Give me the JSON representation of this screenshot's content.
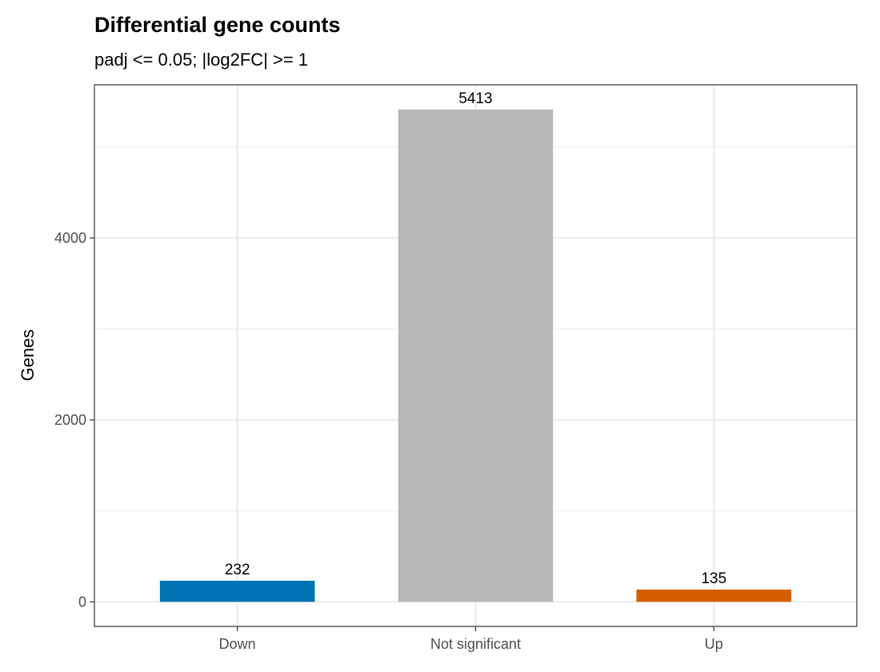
{
  "chart_data": {
    "type": "bar",
    "title": "Differential gene counts",
    "subtitle": "padj <= 0.05; |log2FC| >= 1",
    "xlabel": "",
    "ylabel": "Genes",
    "categories": [
      "Down",
      "Not significant",
      "Up"
    ],
    "values": [
      232,
      5413,
      135
    ],
    "data_labels": [
      "232",
      "5413",
      "135"
    ],
    "colors": [
      "#0072B2",
      "#B8B8B8",
      "#D55E00"
    ],
    "ylim": [
      -270,
      5684
    ],
    "yticks": [
      0,
      2000,
      4000
    ],
    "ytick_labels": [
      "0",
      "2000",
      "4000"
    ],
    "grid": true,
    "legend": "none"
  }
}
